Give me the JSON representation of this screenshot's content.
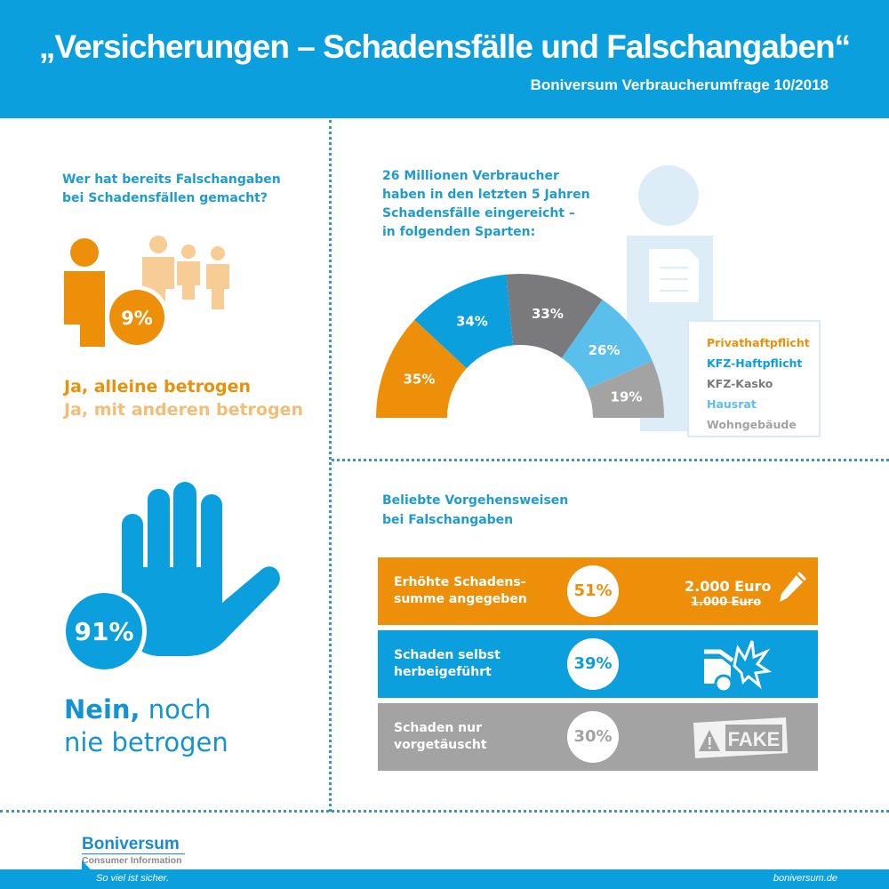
{
  "header": {
    "title": "„Versicherungen – Schadensfälle und Falschangaben“",
    "subtitle": "Boniversum Verbraucherumfrage 10/2018"
  },
  "colors": {
    "brand_blue": "#0c9fde",
    "orange": "#ee8f0a",
    "light_orange": "#f2bd76",
    "dark_gray": "#7a7a7c",
    "light_blue": "#5bbfec",
    "gray": "#a3a3a3",
    "heading_blue": "#1f9ccf"
  },
  "fraud_question": {
    "title_line1": "Wer hat bereits Falschangaben",
    "title_line2": "bei Schadensfällen gemacht?",
    "yes_percent": "9%",
    "yes_alone": "Ja, alleine betrogen",
    "yes_with_others": "Ja, mit anderen betrogen",
    "icon": "people-group-icon"
  },
  "never": {
    "percent": "91%",
    "label_bold": "Nein,",
    "label_rest": " noch",
    "label_line2": "nie betrogen",
    "icon": "stop-hand-icon"
  },
  "sparten": {
    "title_line1": "26 Millionen Verbraucher",
    "title_line2": "haben in den letzten 5 Jahren",
    "title_line3": "Schadensfälle eingereicht –",
    "title_line4": "in folgenden Sparten:",
    "icon": "person-with-document-icon"
  },
  "chart_data": {
    "type": "pie",
    "subtype": "semi-donut",
    "title": "26 Millionen Verbraucher haben in den letzten 5 Jahren Schadensfälle eingereicht – in folgenden Sparten:",
    "categories": [
      "Privathaftpflicht",
      "KFZ-Haftpflicht",
      "KFZ-Kasko",
      "Hausrat",
      "Wohngebäude"
    ],
    "values": [
      35,
      34,
      33,
      26,
      19
    ],
    "labels": [
      "35%",
      "34%",
      "33%",
      "26%",
      "19%"
    ],
    "colors": [
      "#ee8f0a",
      "#0c9fde",
      "#7a7a7c",
      "#5bbfec",
      "#a3a3a3"
    ],
    "unit": "%",
    "legend_position": "right"
  },
  "methods": {
    "title_line1": "Beliebte Vorgehensweisen",
    "title_line2": "bei Falschangaben",
    "rows": [
      {
        "label_line1": "Erhöhte Schadens-",
        "label_line2": "summe angegeben",
        "percent": "51%",
        "value_new": "2.000 Euro",
        "value_old": "1.000 Euro",
        "icon": "pencil-icon"
      },
      {
        "label_line1": "Schaden selbst",
        "label_line2": "herbeigeführt",
        "percent": "39%",
        "icon": "car-crash-icon"
      },
      {
        "label_line1": "Schaden nur",
        "label_line2": "vorgetäuscht",
        "percent": "30%",
        "stamp_text": "FAKE",
        "icon": "fake-warning-stamp-icon"
      }
    ]
  },
  "footer": {
    "logo_name": "Boniversum",
    "logo_sub": "Consumer Information",
    "slogan": "So viel ist sicher.",
    "website": "boniversum.de"
  }
}
